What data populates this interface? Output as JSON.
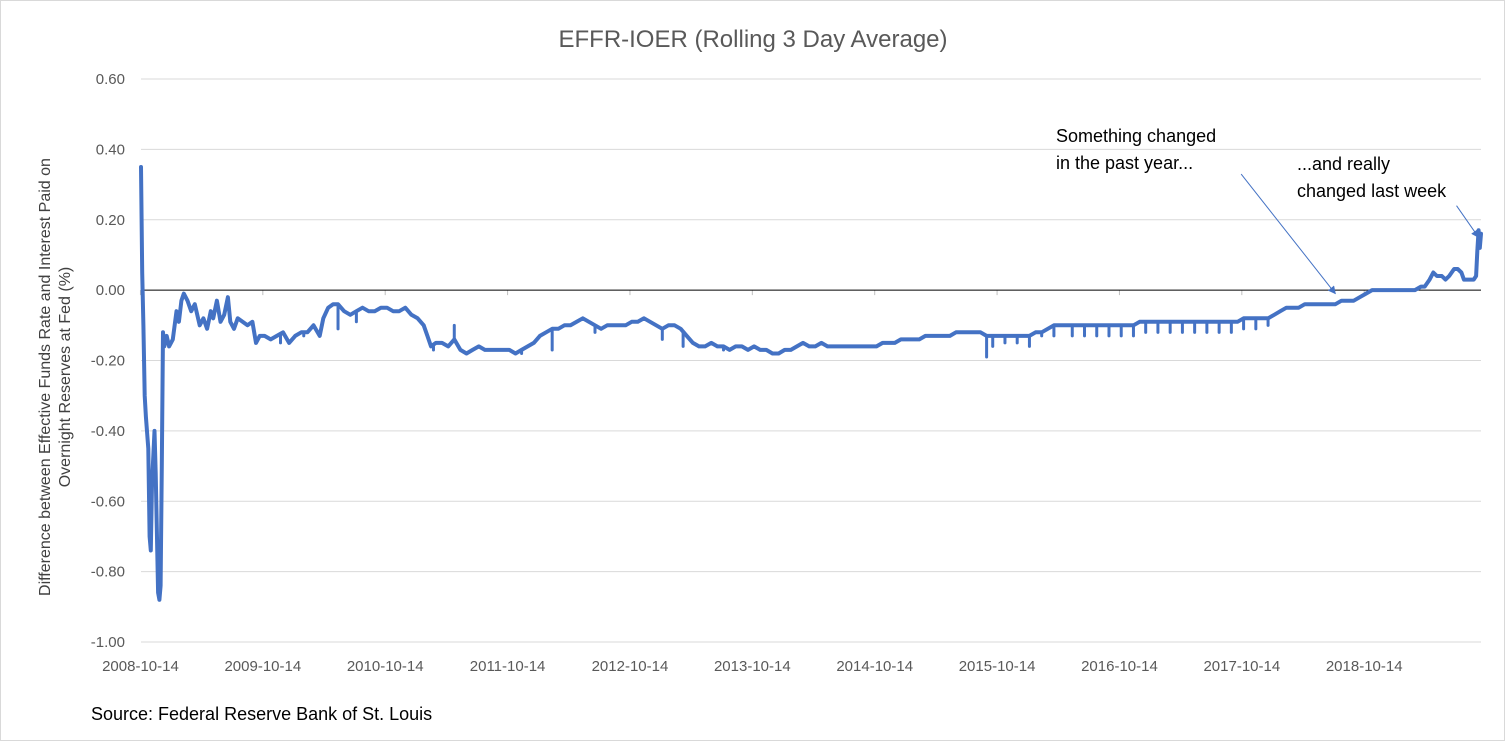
{
  "chart_data": {
    "type": "line",
    "title": "EFFR-IOER (Rolling 3 Day Average)",
    "xlabel": "",
    "ylabel_lines": [
      "Difference between Effective Funds Rate and Interest Paid on",
      "Overnight Reserves at Fed (%)"
    ],
    "ylim": [
      -1.0,
      0.6
    ],
    "y_ticks": [
      "0.60",
      "0.40",
      "0.20",
      "0.00",
      "-0.20",
      "-0.40",
      "-0.60",
      "-0.80",
      "-1.00"
    ],
    "y_tick_values": [
      0.6,
      0.4,
      0.2,
      0.0,
      -0.2,
      -0.4,
      -0.6,
      -0.8,
      -1.0
    ],
    "x_ticks": [
      "2008-10-14",
      "2009-10-14",
      "2010-10-14",
      "2011-10-14",
      "2012-10-14",
      "2013-10-14",
      "2014-10-14",
      "2015-10-14",
      "2016-10-14",
      "2017-10-14",
      "2018-10-14"
    ],
    "xlim": [
      2008.79,
      2019.74
    ],
    "grid": true,
    "series": [
      {
        "color": "#4472c4",
        "points": [
          [
            2008.79,
            0.35
          ],
          [
            2008.8,
            0.05
          ],
          [
            2008.81,
            -0.1
          ],
          [
            2008.82,
            -0.3
          ],
          [
            2008.83,
            -0.36
          ],
          [
            2008.85,
            -0.45
          ],
          [
            2008.86,
            -0.7
          ],
          [
            2008.87,
            -0.74
          ],
          [
            2008.88,
            -0.55
          ],
          [
            2008.9,
            -0.4
          ],
          [
            2008.91,
            -0.52
          ],
          [
            2008.93,
            -0.86
          ],
          [
            2008.94,
            -0.88
          ],
          [
            2008.95,
            -0.84
          ],
          [
            2008.96,
            -0.5
          ],
          [
            2008.97,
            -0.12
          ],
          [
            2008.98,
            -0.16
          ],
          [
            2009.0,
            -0.13
          ],
          [
            2009.02,
            -0.16
          ],
          [
            2009.05,
            -0.14
          ],
          [
            2009.08,
            -0.06
          ],
          [
            2009.1,
            -0.09
          ],
          [
            2009.12,
            -0.03
          ],
          [
            2009.14,
            -0.01
          ],
          [
            2009.17,
            -0.03
          ],
          [
            2009.2,
            -0.06
          ],
          [
            2009.23,
            -0.04
          ],
          [
            2009.27,
            -0.1
          ],
          [
            2009.3,
            -0.08
          ],
          [
            2009.33,
            -0.11
          ],
          [
            2009.36,
            -0.06
          ],
          [
            2009.38,
            -0.08
          ],
          [
            2009.41,
            -0.03
          ],
          [
            2009.44,
            -0.09
          ],
          [
            2009.47,
            -0.07
          ],
          [
            2009.5,
            -0.02
          ],
          [
            2009.52,
            -0.09
          ],
          [
            2009.55,
            -0.11
          ],
          [
            2009.58,
            -0.08
          ],
          [
            2009.62,
            -0.09
          ],
          [
            2009.66,
            -0.1
          ],
          [
            2009.7,
            -0.09
          ],
          [
            2009.73,
            -0.15
          ],
          [
            2009.76,
            -0.13
          ],
          [
            2009.8,
            -0.13
          ],
          [
            2009.85,
            -0.14
          ],
          [
            2009.9,
            -0.13
          ],
          [
            2009.95,
            -0.12
          ],
          [
            2010.0,
            -0.15
          ],
          [
            2010.05,
            -0.13
          ],
          [
            2010.1,
            -0.12
          ],
          [
            2010.15,
            -0.12
          ],
          [
            2010.2,
            -0.1
          ],
          [
            2010.25,
            -0.13
          ],
          [
            2010.28,
            -0.08
          ],
          [
            2010.32,
            -0.05
          ],
          [
            2010.36,
            -0.04
          ],
          [
            2010.4,
            -0.04
          ],
          [
            2010.45,
            -0.06
          ],
          [
            2010.5,
            -0.07
          ],
          [
            2010.55,
            -0.06
          ],
          [
            2010.6,
            -0.05
          ],
          [
            2010.65,
            -0.06
          ],
          [
            2010.7,
            -0.06
          ],
          [
            2010.75,
            -0.05
          ],
          [
            2010.8,
            -0.05
          ],
          [
            2010.85,
            -0.06
          ],
          [
            2010.9,
            -0.06
          ],
          [
            2010.95,
            -0.05
          ],
          [
            2011.0,
            -0.07
          ],
          [
            2011.05,
            -0.08
          ],
          [
            2011.1,
            -0.1
          ],
          [
            2011.13,
            -0.13
          ],
          [
            2011.16,
            -0.16
          ],
          [
            2011.2,
            -0.15
          ],
          [
            2011.25,
            -0.15
          ],
          [
            2011.3,
            -0.16
          ],
          [
            2011.35,
            -0.14
          ],
          [
            2011.4,
            -0.17
          ],
          [
            2011.45,
            -0.18
          ],
          [
            2011.5,
            -0.17
          ],
          [
            2011.55,
            -0.16
          ],
          [
            2011.6,
            -0.17
          ],
          [
            2011.65,
            -0.17
          ],
          [
            2011.7,
            -0.17
          ],
          [
            2011.75,
            -0.17
          ],
          [
            2011.8,
            -0.17
          ],
          [
            2011.85,
            -0.18
          ],
          [
            2011.9,
            -0.17
          ],
          [
            2011.95,
            -0.16
          ],
          [
            2012.0,
            -0.15
          ],
          [
            2012.05,
            -0.13
          ],
          [
            2012.1,
            -0.12
          ],
          [
            2012.15,
            -0.11
          ],
          [
            2012.2,
            -0.11
          ],
          [
            2012.25,
            -0.1
          ],
          [
            2012.3,
            -0.1
          ],
          [
            2012.35,
            -0.09
          ],
          [
            2012.4,
            -0.08
          ],
          [
            2012.45,
            -0.09
          ],
          [
            2012.5,
            -0.1
          ],
          [
            2012.55,
            -0.11
          ],
          [
            2012.6,
            -0.1
          ],
          [
            2012.65,
            -0.1
          ],
          [
            2012.7,
            -0.1
          ],
          [
            2012.75,
            -0.1
          ],
          [
            2012.8,
            -0.09
          ],
          [
            2012.85,
            -0.09
          ],
          [
            2012.9,
            -0.08
          ],
          [
            2012.95,
            -0.09
          ],
          [
            2013.0,
            -0.1
          ],
          [
            2013.05,
            -0.11
          ],
          [
            2013.1,
            -0.1
          ],
          [
            2013.15,
            -0.1
          ],
          [
            2013.2,
            -0.11
          ],
          [
            2013.25,
            -0.13
          ],
          [
            2013.3,
            -0.15
          ],
          [
            2013.35,
            -0.16
          ],
          [
            2013.4,
            -0.16
          ],
          [
            2013.45,
            -0.15
          ],
          [
            2013.5,
            -0.16
          ],
          [
            2013.55,
            -0.16
          ],
          [
            2013.6,
            -0.17
          ],
          [
            2013.65,
            -0.16
          ],
          [
            2013.7,
            -0.16
          ],
          [
            2013.75,
            -0.17
          ],
          [
            2013.8,
            -0.16
          ],
          [
            2013.85,
            -0.17
          ],
          [
            2013.9,
            -0.17
          ],
          [
            2013.95,
            -0.18
          ],
          [
            2014.0,
            -0.18
          ],
          [
            2014.05,
            -0.17
          ],
          [
            2014.1,
            -0.17
          ],
          [
            2014.15,
            -0.16
          ],
          [
            2014.2,
            -0.15
          ],
          [
            2014.25,
            -0.16
          ],
          [
            2014.3,
            -0.16
          ],
          [
            2014.35,
            -0.15
          ],
          [
            2014.4,
            -0.16
          ],
          [
            2014.45,
            -0.16
          ],
          [
            2014.5,
            -0.16
          ],
          [
            2014.55,
            -0.16
          ],
          [
            2014.6,
            -0.16
          ],
          [
            2014.65,
            -0.16
          ],
          [
            2014.7,
            -0.16
          ],
          [
            2014.75,
            -0.16
          ],
          [
            2014.8,
            -0.16
          ],
          [
            2014.85,
            -0.15
          ],
          [
            2014.9,
            -0.15
          ],
          [
            2014.95,
            -0.15
          ],
          [
            2015.0,
            -0.14
          ],
          [
            2015.05,
            -0.14
          ],
          [
            2015.1,
            -0.14
          ],
          [
            2015.15,
            -0.14
          ],
          [
            2015.2,
            -0.13
          ],
          [
            2015.25,
            -0.13
          ],
          [
            2015.3,
            -0.13
          ],
          [
            2015.35,
            -0.13
          ],
          [
            2015.4,
            -0.13
          ],
          [
            2015.45,
            -0.12
          ],
          [
            2015.5,
            -0.12
          ],
          [
            2015.55,
            -0.12
          ],
          [
            2015.6,
            -0.12
          ],
          [
            2015.65,
            -0.12
          ],
          [
            2015.7,
            -0.13
          ],
          [
            2015.75,
            -0.13
          ],
          [
            2015.8,
            -0.13
          ],
          [
            2015.85,
            -0.13
          ],
          [
            2015.9,
            -0.13
          ],
          [
            2015.95,
            -0.13
          ],
          [
            2016.0,
            -0.13
          ],
          [
            2016.05,
            -0.13
          ],
          [
            2016.1,
            -0.12
          ],
          [
            2016.15,
            -0.12
          ],
          [
            2016.2,
            -0.11
          ],
          [
            2016.25,
            -0.1
          ],
          [
            2016.3,
            -0.1
          ],
          [
            2016.35,
            -0.1
          ],
          [
            2016.4,
            -0.1
          ],
          [
            2016.45,
            -0.1
          ],
          [
            2016.5,
            -0.1
          ],
          [
            2016.55,
            -0.1
          ],
          [
            2016.6,
            -0.1
          ],
          [
            2016.65,
            -0.1
          ],
          [
            2016.7,
            -0.1
          ],
          [
            2016.75,
            -0.1
          ],
          [
            2016.8,
            -0.1
          ],
          [
            2016.85,
            -0.1
          ],
          [
            2016.9,
            -0.1
          ],
          [
            2016.95,
            -0.09
          ],
          [
            2017.0,
            -0.09
          ],
          [
            2017.05,
            -0.09
          ],
          [
            2017.1,
            -0.09
          ],
          [
            2017.15,
            -0.09
          ],
          [
            2017.2,
            -0.09
          ],
          [
            2017.25,
            -0.09
          ],
          [
            2017.3,
            -0.09
          ],
          [
            2017.35,
            -0.09
          ],
          [
            2017.4,
            -0.09
          ],
          [
            2017.45,
            -0.09
          ],
          [
            2017.5,
            -0.09
          ],
          [
            2017.55,
            -0.09
          ],
          [
            2017.6,
            -0.09
          ],
          [
            2017.65,
            -0.09
          ],
          [
            2017.7,
            -0.09
          ],
          [
            2017.75,
            -0.09
          ],
          [
            2017.8,
            -0.08
          ],
          [
            2017.85,
            -0.08
          ],
          [
            2017.9,
            -0.08
          ],
          [
            2017.95,
            -0.08
          ],
          [
            2018.0,
            -0.08
          ],
          [
            2018.05,
            -0.07
          ],
          [
            2018.1,
            -0.06
          ],
          [
            2018.15,
            -0.05
          ],
          [
            2018.2,
            -0.05
          ],
          [
            2018.25,
            -0.05
          ],
          [
            2018.3,
            -0.04
          ],
          [
            2018.35,
            -0.04
          ],
          [
            2018.4,
            -0.04
          ],
          [
            2018.45,
            -0.04
          ],
          [
            2018.5,
            -0.04
          ],
          [
            2018.55,
            -0.04
          ],
          [
            2018.6,
            -0.03
          ],
          [
            2018.65,
            -0.03
          ],
          [
            2018.7,
            -0.03
          ],
          [
            2018.75,
            -0.02
          ],
          [
            2018.8,
            -0.01
          ],
          [
            2018.85,
            0.0
          ],
          [
            2018.9,
            0.0
          ],
          [
            2018.95,
            0.0
          ],
          [
            2019.0,
            0.0
          ],
          [
            2019.05,
            0.0
          ],
          [
            2019.1,
            0.0
          ],
          [
            2019.15,
            0.0
          ],
          [
            2019.2,
            0.0
          ],
          [
            2019.25,
            0.01
          ],
          [
            2019.28,
            0.01
          ],
          [
            2019.32,
            0.03
          ],
          [
            2019.35,
            0.05
          ],
          [
            2019.38,
            0.04
          ],
          [
            2019.42,
            0.04
          ],
          [
            2019.45,
            0.03
          ],
          [
            2019.48,
            0.04
          ],
          [
            2019.52,
            0.06
          ],
          [
            2019.55,
            0.06
          ],
          [
            2019.58,
            0.05
          ],
          [
            2019.6,
            0.03
          ],
          [
            2019.62,
            0.03
          ],
          [
            2019.65,
            0.03
          ],
          [
            2019.68,
            0.03
          ],
          [
            2019.7,
            0.04
          ],
          [
            2019.71,
            0.11
          ],
          [
            2019.72,
            0.17
          ],
          [
            2019.73,
            0.12
          ],
          [
            2019.74,
            0.16
          ]
        ]
      }
    ],
    "spikes": [
      [
        2009.73,
        -0.15
      ],
      [
        2009.93,
        -0.15
      ],
      [
        2010.12,
        -0.13
      ],
      [
        2010.4,
        -0.11
      ],
      [
        2010.55,
        -0.09
      ],
      [
        2011.18,
        -0.17
      ],
      [
        2011.35,
        -0.1
      ],
      [
        2011.9,
        -0.18
      ],
      [
        2012.15,
        -0.17
      ],
      [
        2012.5,
        -0.12
      ],
      [
        2013.05,
        -0.14
      ],
      [
        2013.22,
        -0.16
      ],
      [
        2013.55,
        -0.17
      ],
      [
        2014.25,
        -0.16
      ],
      [
        2015.7,
        -0.19
      ],
      [
        2015.75,
        -0.16
      ],
      [
        2015.85,
        -0.15
      ],
      [
        2015.95,
        -0.15
      ],
      [
        2016.05,
        -0.16
      ],
      [
        2016.15,
        -0.13
      ],
      [
        2016.25,
        -0.13
      ],
      [
        2016.4,
        -0.13
      ],
      [
        2016.5,
        -0.13
      ],
      [
        2016.6,
        -0.13
      ],
      [
        2016.7,
        -0.13
      ],
      [
        2016.8,
        -0.13
      ],
      [
        2016.9,
        -0.13
      ],
      [
        2017.0,
        -0.12
      ],
      [
        2017.1,
        -0.12
      ],
      [
        2017.2,
        -0.12
      ],
      [
        2017.3,
        -0.12
      ],
      [
        2017.4,
        -0.12
      ],
      [
        2017.5,
        -0.12
      ],
      [
        2017.6,
        -0.12
      ],
      [
        2017.7,
        -0.12
      ],
      [
        2017.8,
        -0.11
      ],
      [
        2017.9,
        -0.11
      ],
      [
        2018.0,
        -0.1
      ]
    ],
    "annotations": [
      {
        "text_lines": [
          "Something changed",
          "in the past year..."
        ],
        "arrow_from": [
          2017.78,
          0.33
        ],
        "arrow_to": [
          2018.55,
          -0.01
        ]
      },
      {
        "text_lines": [
          "...and really",
          "changed last week"
        ],
        "arrow_from": [
          2019.54,
          0.24
        ],
        "arrow_to": [
          2019.72,
          0.15
        ]
      }
    ]
  },
  "source": "Source: Federal Reserve Bank of St. Louis"
}
